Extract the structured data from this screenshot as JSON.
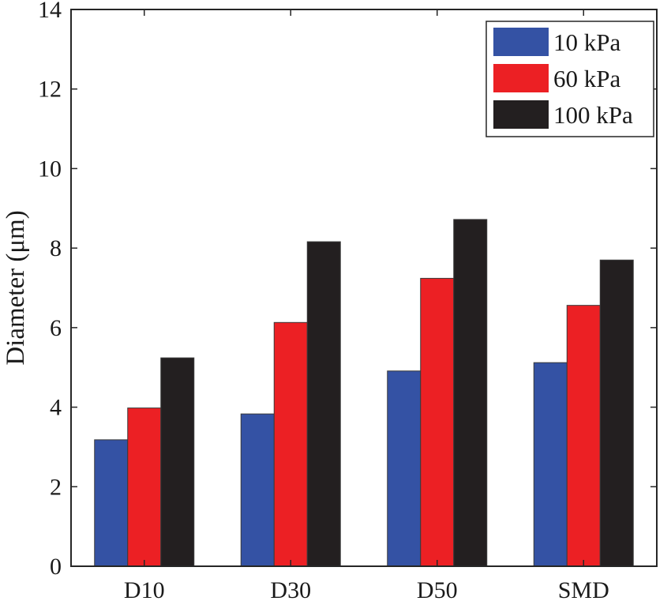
{
  "chart_data": {
    "type": "bar",
    "title": "",
    "xlabel": "",
    "ylabel": "Diameter (μm)",
    "ylim": [
      0,
      14
    ],
    "yticks": [
      0,
      2,
      4,
      6,
      8,
      10,
      12,
      14
    ],
    "yticks_text": [
      "0",
      "2",
      "4",
      "6",
      "8",
      "10",
      "12",
      "14"
    ],
    "grid": false,
    "legend_position": "top-right",
    "categories": [
      "D10",
      "D30",
      "D50",
      "SMD"
    ],
    "series": [
      {
        "name": "10 kPa",
        "color": "#3452a4",
        "values": [
          3.18,
          3.83,
          4.91,
          5.12
        ]
      },
      {
        "name": "60 kPa",
        "color": "#ec2024",
        "values": [
          3.98,
          6.13,
          7.24,
          6.56
        ]
      },
      {
        "name": "100 kPa",
        "color": "#231f20",
        "values": [
          5.24,
          8.16,
          8.72,
          7.7
        ]
      }
    ]
  }
}
